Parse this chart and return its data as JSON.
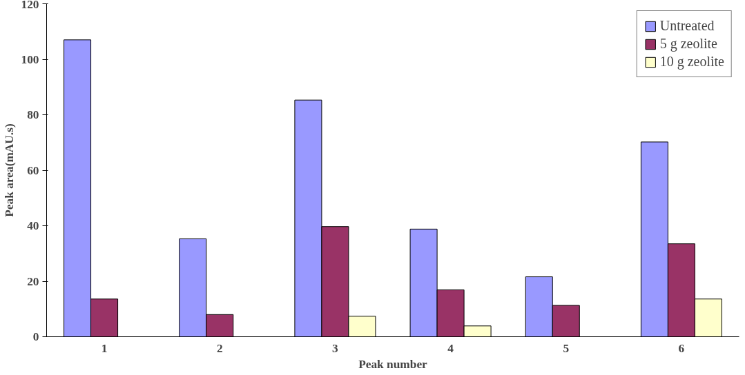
{
  "chart_data": {
    "type": "bar",
    "xlabel": "Peak number",
    "ylabel": "Peak area(mAU.s)",
    "categories": [
      "1",
      "2",
      "3",
      "4",
      "5",
      "6"
    ],
    "series": [
      {
        "name": "Untreated",
        "color": "#9999ff",
        "values": [
          107,
          35.3,
          85.3,
          38.8,
          21.6,
          70.2
        ]
      },
      {
        "name": "5 g zeolite",
        "color": "#993366",
        "values": [
          13.6,
          8,
          39.7,
          16.9,
          11.3,
          33.5
        ]
      },
      {
        "name": "10 g zeolite",
        "color": "#ffffcc",
        "values": [
          null,
          null,
          7.4,
          3.9,
          null,
          13.6
        ]
      }
    ],
    "ylim": [
      0,
      120
    ],
    "yticks": [
      0,
      20,
      40,
      60,
      80,
      100,
      120
    ],
    "grid": false,
    "legend": "top right"
  }
}
